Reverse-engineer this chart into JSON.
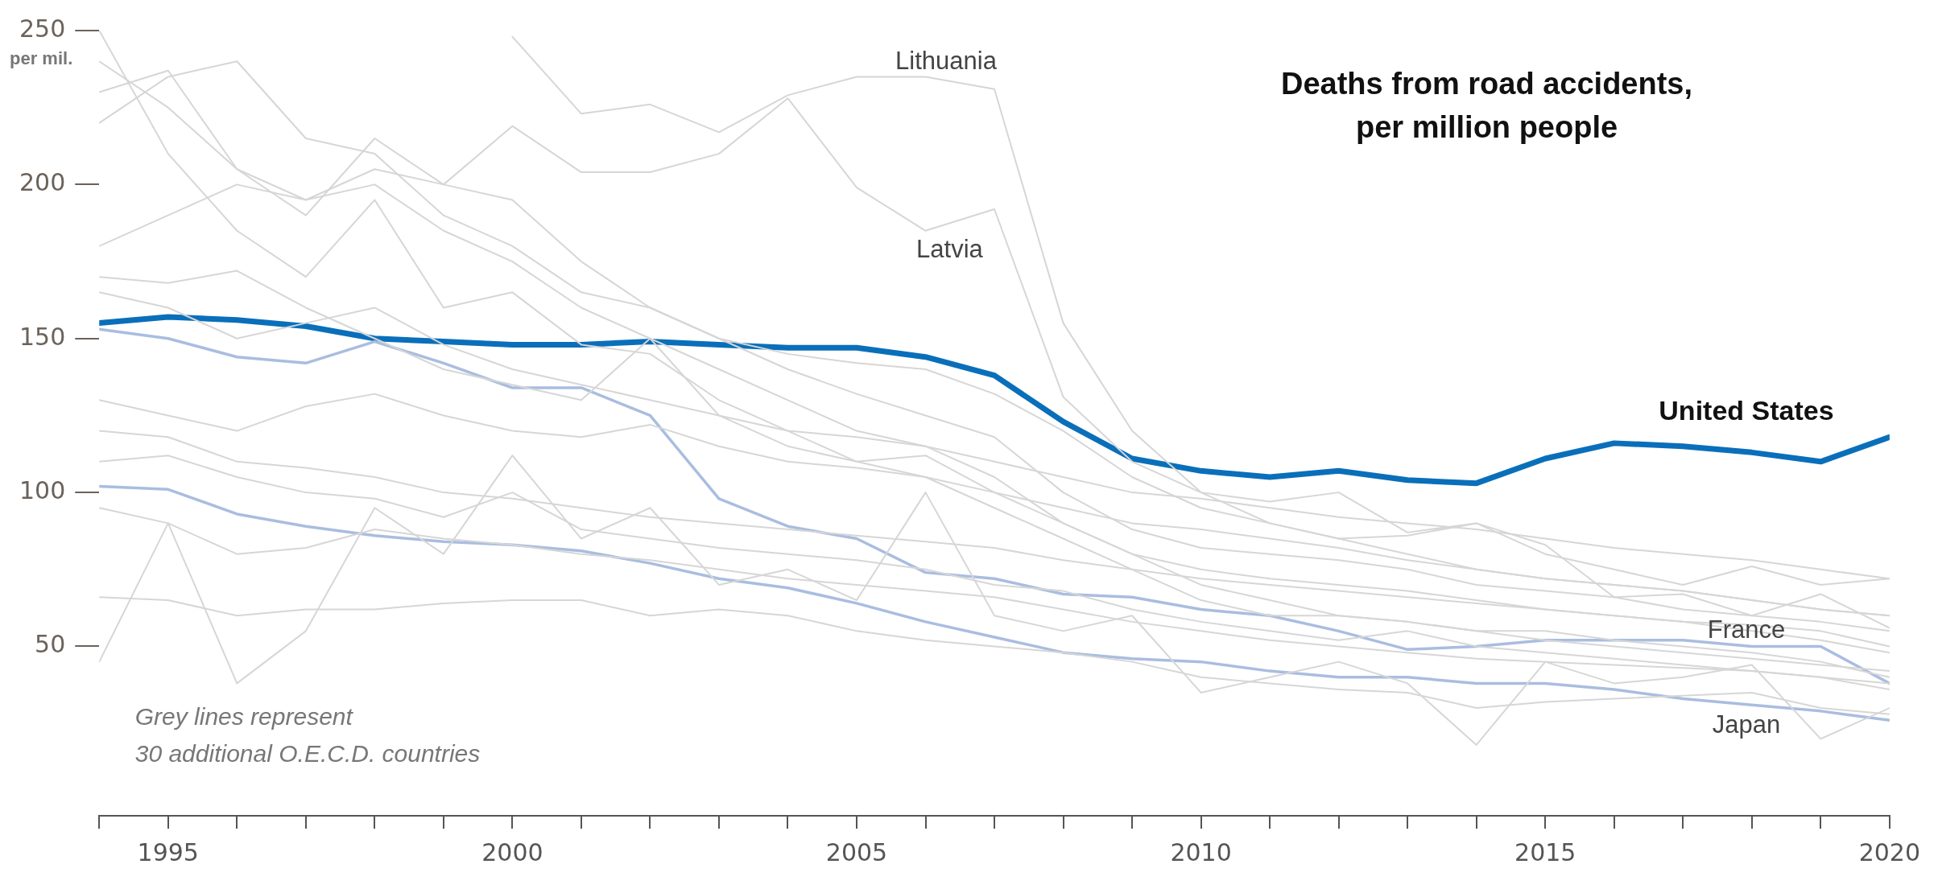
{
  "chart_data": {
    "type": "line",
    "title": "Deaths from road accidents,\nper million people",
    "ylabel": "per mil.",
    "annotations": [
      "Grey lines represent\n30 additional O.E.C.D. countries"
    ],
    "x": [
      1994,
      1995,
      1996,
      1997,
      1998,
      1999,
      2000,
      2001,
      2002,
      2003,
      2004,
      2005,
      2006,
      2007,
      2008,
      2009,
      2010,
      2011,
      2012,
      2013,
      2014,
      2015,
      2016,
      2017,
      2018,
      2019,
      2020
    ],
    "xlim": [
      1994,
      2020
    ],
    "xticks": [
      {
        "value": 1994,
        "label": null
      },
      1995,
      {
        "value": 1996,
        "label": null
      },
      {
        "value": 1997,
        "label": null
      },
      {
        "value": 1998,
        "label": null
      },
      {
        "value": 1999,
        "label": null
      },
      2000,
      {
        "value": 2001,
        "label": null
      },
      {
        "value": 2002,
        "label": null
      },
      {
        "value": 2003,
        "label": null
      },
      {
        "value": 2004,
        "label": null
      },
      2005,
      {
        "value": 2006,
        "label": null
      },
      {
        "value": 2007,
        "label": null
      },
      {
        "value": 2008,
        "label": null
      },
      {
        "value": 2009,
        "label": null
      },
      2010,
      {
        "value": 2011,
        "label": null
      },
      {
        "value": 2012,
        "label": null
      },
      {
        "value": 2013,
        "label": null
      },
      {
        "value": 2014,
        "label": null
      },
      2015,
      {
        "value": 2016,
        "label": null
      },
      {
        "value": 2017,
        "label": null
      },
      {
        "value": 2018,
        "label": null
      },
      {
        "value": 2019,
        "label": null
      },
      2020
    ],
    "ylim": [
      -5,
      250
    ],
    "yticks": [
      50,
      100,
      150,
      200,
      250
    ],
    "grid": false,
    "legend": false,
    "marker": "none",
    "line_style": "solid",
    "series": [
      {
        "color": "#d6d6d6",
        "values": [
          240,
          225,
          205,
          195,
          200,
          185,
          175,
          160,
          150,
          140,
          130,
          120,
          115,
          105,
          90,
          80,
          75,
          72,
          70,
          68,
          65,
          62,
          60,
          58,
          55,
          52,
          48
        ]
      },
      {
        "color": "#d6d6d6",
        "values": [
          220,
          235,
          240,
          215,
          210,
          190,
          180,
          165,
          160,
          150,
          140,
          132,
          125,
          118,
          100,
          88,
          82,
          80,
          78,
          75,
          70,
          68,
          66,
          62,
          60,
          58,
          55
        ]
      },
      {
        "color": "#d6d6d6",
        "values": [
          180,
          190,
          200,
          195,
          205,
          200,
          195,
          175,
          160,
          150,
          145,
          142,
          140,
          132,
          120,
          105,
          95,
          90,
          85,
          80,
          75,
          72,
          70,
          68,
          65,
          62,
          60
        ]
      },
      {
        "color": "#d6d6d6",
        "values": [
          165,
          160,
          150,
          155,
          160,
          148,
          140,
          135,
          130,
          125,
          120,
          118,
          115,
          110,
          105,
          100,
          98,
          95,
          92,
          90,
          88,
          85,
          82,
          80,
          78,
          75,
          72
        ]
      },
      {
        "color": "#d6d6d6",
        "values": [
          130,
          125,
          120,
          128,
          132,
          125,
          120,
          118,
          122,
          115,
          110,
          108,
          105,
          100,
          95,
          90,
          88,
          85,
          82,
          78,
          75,
          72,
          70,
          68,
          65,
          62,
          60
        ]
      },
      {
        "color": "#d6d6d6",
        "values": [
          120,
          118,
          110,
          108,
          105,
          100,
          98,
          95,
          92,
          90,
          88,
          86,
          84,
          82,
          78,
          75,
          72,
          70,
          68,
          66,
          64,
          62,
          60,
          58,
          57,
          55,
          50
        ]
      },
      {
        "color": "#d6d6d6",
        "values": [
          95,
          90,
          80,
          82,
          88,
          85,
          83,
          80,
          78,
          75,
          72,
          70,
          68,
          66,
          62,
          58,
          55,
          52,
          50,
          48,
          46,
          45,
          44,
          43,
          42,
          40,
          38
        ]
      },
      {
        "color": "#d6d6d6",
        "values": [
          45,
          90,
          38,
          55,
          95,
          80,
          112,
          85,
          95,
          70,
          75,
          65,
          100,
          60,
          55,
          60,
          35,
          40,
          45,
          38,
          18,
          45,
          38,
          40,
          44,
          20,
          30
        ]
      },
      {
        "color": "#d6d6d6",
        "values": [
          66,
          65,
          60,
          62,
          62,
          64,
          65,
          65,
          60,
          62,
          60,
          55,
          52,
          50,
          48,
          45,
          40,
          38,
          36,
          35,
          30,
          32,
          33,
          34,
          35,
          30,
          28
        ]
      },
      {
        "color": "#d6d6d6",
        "values": [
          170,
          168,
          172,
          160,
          150,
          140,
          135,
          130,
          150,
          125,
          115,
          110,
          112,
          100,
          90,
          80,
          70,
          65,
          60,
          58,
          55,
          52,
          50,
          48,
          46,
          44,
          42
        ]
      },
      {
        "color": "#d6d6d6",
        "values": [
          250,
          210,
          185,
          170,
          195,
          160,
          165,
          148,
          145,
          130,
          120,
          110,
          105,
          95,
          85,
          75,
          65,
          60,
          60,
          58,
          55,
          55,
          52,
          50,
          48,
          45,
          40
        ]
      },
      {
        "color": "#d6d6d6",
        "values": [
          110,
          112,
          105,
          100,
          98,
          92,
          100,
          88,
          85,
          82,
          80,
          78,
          75,
          70,
          68,
          62,
          58,
          55,
          52,
          55,
          50,
          48,
          46,
          44,
          42,
          40,
          36
        ]
      },
      {
        "name": "Lithuania",
        "color": "#d6d6d6",
        "values": [
          null,
          null,
          null,
          null,
          null,
          null,
          248,
          223,
          226,
          217,
          229,
          235,
          235,
          231,
          155,
          120,
          100,
          97,
          100,
          87,
          90,
          83,
          66,
          67,
          60,
          67,
          56
        ]
      },
      {
        "name": "Latvia",
        "color": "#d6d6d6",
        "values": [
          230,
          237,
          205,
          190,
          215,
          200,
          219,
          204,
          204,
          210,
          228,
          199,
          185,
          192,
          131,
          110,
          100,
          90,
          85,
          86,
          90,
          80,
          75,
          70,
          76,
          70,
          72
        ]
      },
      {
        "name": "Japan",
        "color": "#a9bde0",
        "values": [
          102,
          101,
          93,
          89,
          86,
          84,
          83,
          81,
          77,
          72,
          69,
          64,
          58,
          53,
          48,
          46,
          45,
          42,
          40,
          40,
          38,
          38,
          36,
          33,
          31,
          29,
          26
        ]
      },
      {
        "name": "France",
        "color": "#a9bde0",
        "values": [
          153,
          150,
          144,
          142,
          149,
          142,
          134,
          134,
          125,
          98,
          89,
          85,
          74,
          72,
          67,
          66,
          62,
          60,
          55,
          49,
          50,
          52,
          52,
          52,
          50,
          50,
          38
        ]
      },
      {
        "name": "United States",
        "color": "#0a6fba",
        "values": [
          155,
          157,
          156,
          154,
          150,
          149,
          148,
          148,
          149,
          148,
          147,
          147,
          144,
          138,
          123,
          111,
          107,
          105,
          107,
          104,
          103,
          111,
          116,
          115,
          113,
          110,
          118
        ]
      }
    ]
  }
}
